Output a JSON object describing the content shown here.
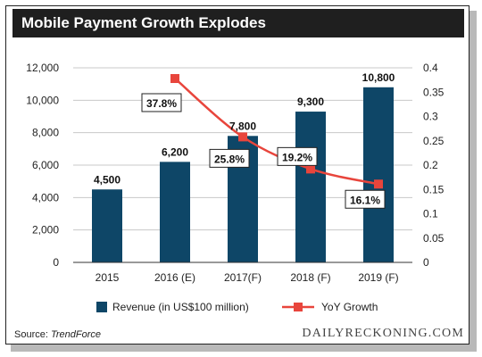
{
  "title": "Mobile Payment Growth Explodes",
  "source_prefix": "Source: ",
  "source_name": "TrendForce",
  "brand": "DAILYRECKONING.COM",
  "chart_data": {
    "type": "bar",
    "categories": [
      "2015",
      "2016 (E)",
      "2017(F)",
      "2018 (F)",
      "2019 (F)"
    ],
    "series": [
      {
        "name": "Revenue (in US$100 million)",
        "type": "bar",
        "axis": "left",
        "values": [
          4500,
          6200,
          7800,
          9300,
          10800
        ],
        "labels": [
          "4,500",
          "6,200",
          "7,800",
          "9,300",
          "10,800"
        ],
        "color": "#0e4667"
      },
      {
        "name": "YoY Growth",
        "type": "line",
        "axis": "right",
        "values": [
          null,
          0.378,
          0.258,
          0.192,
          0.161
        ],
        "labels": [
          "",
          "37.8%",
          "25.8%",
          "19.2%",
          "16.1%"
        ],
        "color": "#e8453c"
      }
    ],
    "y_left": {
      "range": [
        0,
        12000
      ],
      "ticks": [
        0,
        2000,
        4000,
        6000,
        8000,
        10000,
        12000
      ],
      "tick_labels": [
        "0",
        "2,000",
        "4,000",
        "6,000",
        "8,000",
        "10,000",
        "12,000"
      ]
    },
    "y_right": {
      "range": [
        0,
        0.4
      ],
      "ticks": [
        0,
        0.05,
        0.1,
        0.15,
        0.2,
        0.25,
        0.3,
        0.35,
        0.4
      ],
      "tick_labels": [
        "0",
        "0.05",
        "0.1",
        "0.15",
        "0.2",
        "0.25",
        "0.3",
        "0.35",
        "0.4"
      ]
    },
    "grid": true,
    "legend": "bottom"
  }
}
